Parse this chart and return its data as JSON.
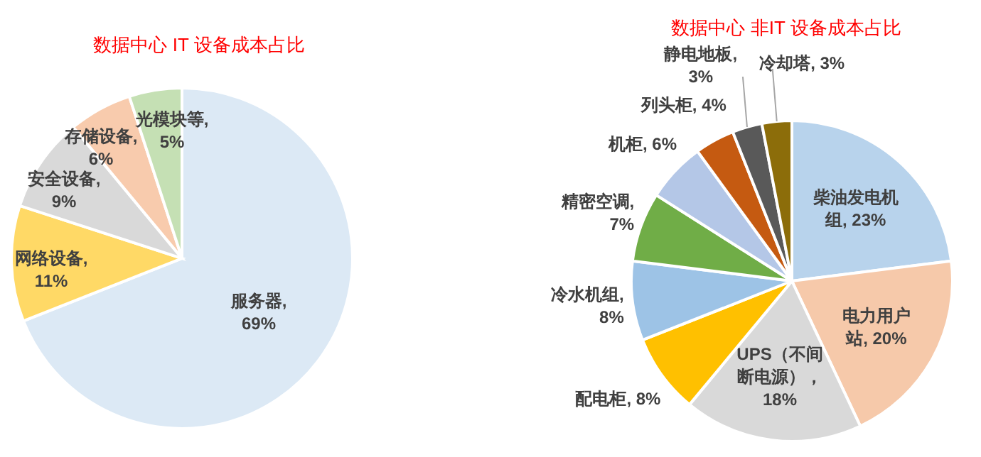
{
  "chart_data": [
    {
      "type": "pie",
      "title": "数据中心 IT 设备成本占比",
      "categories": [
        "服务器",
        "网络设备",
        "安全设备",
        "存储设备",
        "光模块等"
      ],
      "values": [
        69,
        11,
        9,
        6,
        5
      ],
      "colors": [
        "#dce9f5",
        "#ffd966",
        "#d9d9d9",
        "#f8cbad",
        "#c5e0b4"
      ],
      "value_labels": [
        ", 69%",
        ", 11%",
        ", 9%",
        ", 6%",
        ", 5%"
      ]
    },
    {
      "type": "pie",
      "title": "数据中心 非IT 设备成本占比",
      "categories": [
        "柴油发电机组",
        "电力用户站",
        "UPS（不间断电源）",
        "配电柜",
        "冷水机组",
        "精密空调",
        "机柜",
        "列头柜",
        "静电地板",
        "冷却塔"
      ],
      "values": [
        23,
        20,
        18,
        8,
        8,
        7,
        6,
        4,
        3,
        3
      ],
      "colors": [
        "#b8d3ec",
        "#f6c9aa",
        "#d9d9d9",
        "#ffc000",
        "#9dc3e6",
        "#70ad47",
        "#b4c7e7",
        "#c55a11",
        "#595959",
        "#8c6d0a"
      ],
      "value_labels": [
        ", 23%",
        ", 20%",
        "，18%",
        ", 8%",
        ", 8%",
        ", 7%",
        ", 6%",
        ", 4%",
        ", 3%",
        ", 3%"
      ]
    }
  ]
}
